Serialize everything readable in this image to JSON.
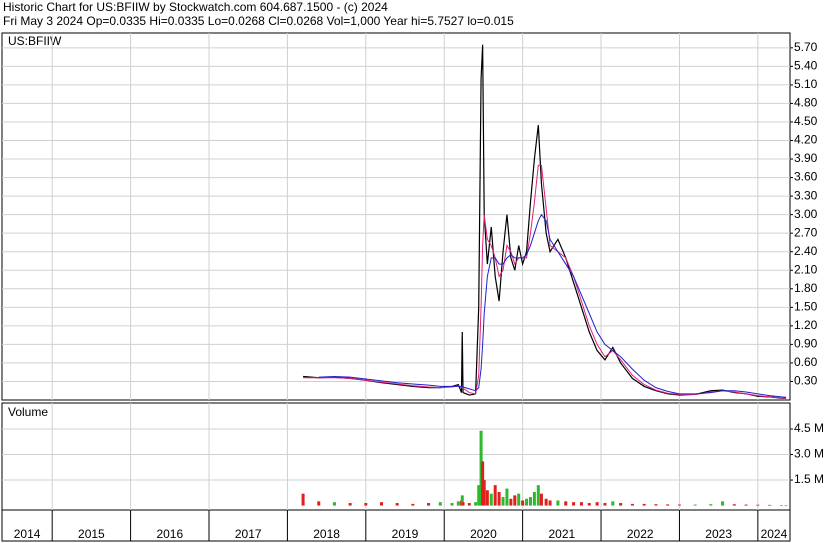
{
  "chart_data": [
    {
      "type": "line",
      "title": "Historic Chart for US:BFIIW by Stockwatch.com 604.687.1500 - (c) 2024",
      "subtitle": "Fri May  3 2024  Op=0.0335  Hi=0.0335  Lo=0.0268  Cl=0.0268  Vol=1,000  Year hi=5.7527  lo=0.015",
      "symbol_label": "US:BFIIW",
      "x": [
        2018.2,
        2018.4,
        2018.6,
        2018.8,
        2019.0,
        2019.2,
        2019.4,
        2019.6,
        2019.8,
        2019.95,
        2020.1,
        2020.18,
        2020.22,
        2020.23,
        2020.24,
        2020.32,
        2020.4,
        2020.44,
        2020.47,
        2020.49,
        2020.51,
        2020.55,
        2020.6,
        2020.65,
        2020.7,
        2020.75,
        2020.8,
        2020.85,
        2020.9,
        2020.95,
        2021.0,
        2021.05,
        2021.1,
        2021.15,
        2021.2,
        2021.24,
        2021.3,
        2021.35,
        2021.45,
        2021.55,
        2021.65,
        2021.75,
        2021.85,
        2021.95,
        2022.05,
        2022.15,
        2022.25,
        2022.4,
        2022.55,
        2022.7,
        2022.85,
        2023.0,
        2023.2,
        2023.4,
        2023.55,
        2023.7,
        2023.85,
        2024.0,
        2024.15,
        2024.3,
        2024.36
      ],
      "series": [
        {
          "color": "#000000",
          "values": [
            0.38,
            0.36,
            0.37,
            0.35,
            0.32,
            0.28,
            0.25,
            0.22,
            0.2,
            0.2,
            0.22,
            0.25,
            0.12,
            1.1,
            0.12,
            0.08,
            0.1,
            1.5,
            5.2,
            5.75,
            3.0,
            2.2,
            2.8,
            2.0,
            1.6,
            2.4,
            3.0,
            2.3,
            2.1,
            2.5,
            2.2,
            2.4,
            3.2,
            3.9,
            4.45,
            3.5,
            2.7,
            2.4,
            2.6,
            2.3,
            1.9,
            1.5,
            1.1,
            0.8,
            0.65,
            0.85,
            0.6,
            0.35,
            0.22,
            0.15,
            0.1,
            0.08,
            0.09,
            0.15,
            0.16,
            0.12,
            0.1,
            0.06,
            0.05,
            0.03,
            0.027
          ]
        },
        {
          "color": "#e0207a",
          "values": [
            0.36,
            0.36,
            0.36,
            0.35,
            0.32,
            0.29,
            0.26,
            0.23,
            0.21,
            0.2,
            0.21,
            0.23,
            0.2,
            0.2,
            0.19,
            0.12,
            0.1,
            0.4,
            1.5,
            2.5,
            3.0,
            2.6,
            2.5,
            2.3,
            2.0,
            2.1,
            2.5,
            2.4,
            2.2,
            2.3,
            2.3,
            2.3,
            2.7,
            3.2,
            3.8,
            3.8,
            3.1,
            2.5,
            2.4,
            2.3,
            2.0,
            1.6,
            1.2,
            0.9,
            0.7,
            0.8,
            0.65,
            0.4,
            0.25,
            0.16,
            0.11,
            0.09,
            0.09,
            0.13,
            0.15,
            0.13,
            0.1,
            0.07,
            0.05,
            0.035,
            0.03
          ]
        },
        {
          "color": "#2020d0",
          "values": [
            null,
            0.37,
            0.38,
            0.37,
            0.34,
            0.31,
            0.28,
            0.26,
            0.24,
            0.22,
            0.22,
            0.22,
            0.22,
            0.22,
            0.21,
            0.18,
            0.15,
            0.2,
            0.5,
            0.9,
            1.4,
            2.0,
            2.3,
            2.3,
            2.2,
            2.2,
            2.3,
            2.35,
            2.3,
            2.3,
            2.3,
            2.35,
            2.5,
            2.7,
            2.9,
            3.0,
            2.9,
            2.6,
            2.4,
            2.2,
            2.0,
            1.7,
            1.4,
            1.1,
            0.9,
            0.8,
            0.7,
            0.5,
            0.32,
            0.2,
            0.14,
            0.1,
            0.1,
            0.12,
            0.15,
            0.15,
            0.13,
            0.1,
            0.07,
            0.05,
            0.045
          ]
        }
      ],
      "xlim": [
        2014.36,
        2024.41
      ],
      "xticks": [
        2015,
        2016,
        2017,
        2018,
        2019,
        2020,
        2021,
        2022,
        2023,
        2024
      ],
      "ylim": [
        0,
        5.94
      ],
      "yticks": [
        {
          "value": 0.3,
          "label": "0.30"
        },
        {
          "value": 0.6,
          "label": "0.60"
        },
        {
          "value": 0.9,
          "label": "0.90"
        },
        {
          "value": 1.2,
          "label": "1.20"
        },
        {
          "value": 1.5,
          "label": "1.50"
        },
        {
          "value": 1.8,
          "label": "1.80"
        },
        {
          "value": 2.1,
          "label": "2.10"
        },
        {
          "value": 2.4,
          "label": "2.40"
        },
        {
          "value": 2.7,
          "label": "2.70"
        },
        {
          "value": 3.0,
          "label": "3.00"
        },
        {
          "value": 3.3,
          "label": "3.30"
        },
        {
          "value": 3.6,
          "label": "3.60"
        },
        {
          "value": 3.9,
          "label": "3.90"
        },
        {
          "value": 4.2,
          "label": "4.20"
        },
        {
          "value": 4.5,
          "label": "4.50"
        },
        {
          "value": 4.8,
          "label": "4.80"
        },
        {
          "value": 5.1,
          "label": "5.10"
        },
        {
          "value": 5.4,
          "label": "5.40"
        },
        {
          "value": 5.7,
          "label": "5.70"
        }
      ],
      "grid": true
    },
    {
      "type": "bar",
      "title": "Volume",
      "x": [
        2018.2,
        2018.4,
        2018.6,
        2018.8,
        2019.0,
        2019.2,
        2019.4,
        2019.6,
        2019.8,
        2019.95,
        2020.1,
        2020.18,
        2020.22,
        2020.23,
        2020.24,
        2020.32,
        2020.4,
        2020.44,
        2020.47,
        2020.49,
        2020.51,
        2020.55,
        2020.6,
        2020.65,
        2020.7,
        2020.75,
        2020.8,
        2020.85,
        2020.9,
        2020.95,
        2021.0,
        2021.05,
        2021.1,
        2021.15,
        2021.2,
        2021.24,
        2021.3,
        2021.35,
        2021.45,
        2021.55,
        2021.65,
        2021.75,
        2021.85,
        2021.95,
        2022.05,
        2022.15,
        2022.25,
        2022.4,
        2022.55,
        2022.7,
        2022.85,
        2023.0,
        2023.2,
        2023.4,
        2023.55,
        2023.7,
        2023.85,
        2024.0,
        2024.15,
        2024.3,
        2024.36
      ],
      "values": [
        700000,
        250000,
        200000,
        150000,
        150000,
        200000,
        150000,
        100000,
        150000,
        200000,
        150000,
        250000,
        300000,
        600000,
        200000,
        150000,
        200000,
        1200000,
        4400000,
        2600000,
        1500000,
        900000,
        700000,
        1200000,
        800000,
        500000,
        1000000,
        400000,
        600000,
        700000,
        300000,
        400000,
        500000,
        800000,
        1200000,
        700000,
        400000,
        300000,
        300000,
        250000,
        200000,
        200000,
        150000,
        200000,
        150000,
        250000,
        150000,
        100000,
        100000,
        80000,
        70000,
        60000,
        60000,
        80000,
        250000,
        80000,
        60000,
        50000,
        40000,
        30000,
        1000
      ],
      "colors": [
        "#e02020",
        "#e02020",
        "#2db82d",
        "#e02020",
        "#e02020",
        "#e02020",
        "#e02020",
        "#e02020",
        "#e02020",
        "#2db82d",
        "#2db82d",
        "#2db82d",
        "#e02020",
        "#2db82d",
        "#e02020",
        "#e02020",
        "#2db82d",
        "#2db82d",
        "#2db82d",
        "#e02020",
        "#e02020",
        "#e02020",
        "#2db82d",
        "#e02020",
        "#e02020",
        "#2db82d",
        "#2db82d",
        "#e02020",
        "#e02020",
        "#2db82d",
        "#e02020",
        "#2db82d",
        "#2db82d",
        "#2db82d",
        "#2db82d",
        "#e02020",
        "#e02020",
        "#e02020",
        "#2db82d",
        "#e02020",
        "#e02020",
        "#e02020",
        "#e02020",
        "#e02020",
        "#e02020",
        "#2db82d",
        "#e02020",
        "#e02020",
        "#e02020",
        "#e02020",
        "#e02020",
        "#e02020",
        "#2db82d",
        "#2db82d",
        "#2db82d",
        "#e02020",
        "#e02020",
        "#e02020",
        "#e02020",
        "#e02020",
        "#e02020"
      ],
      "xlim": [
        2014.36,
        2024.41
      ],
      "xticks": [
        2014,
        2015,
        2016,
        2017,
        2018,
        2019,
        2020,
        2021,
        2022,
        2023,
        2024
      ],
      "ylim": [
        -260000,
        6030000
      ],
      "yticks": [
        {
          "value": 1500000,
          "label": "1.5 M"
        },
        {
          "value": 3000000,
          "label": "3.0 M"
        },
        {
          "value": 4500000,
          "label": "4.5 M"
        }
      ],
      "grid": true
    }
  ]
}
